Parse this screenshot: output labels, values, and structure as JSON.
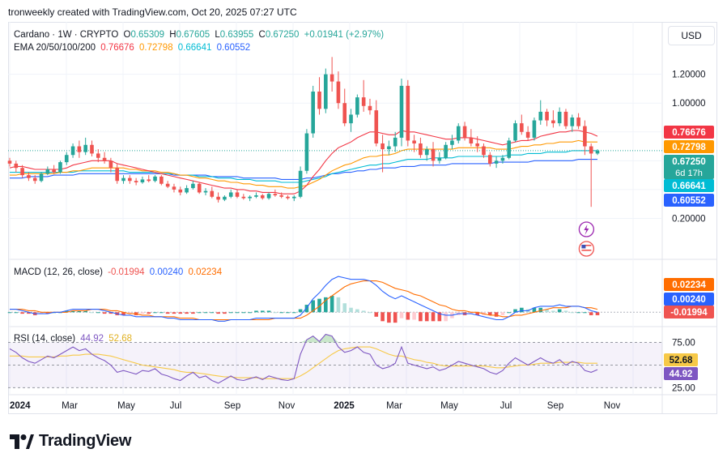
{
  "header": {
    "credit": "tronweekly created with TradingView.com, Oct 20, 2025 07:27 UTC"
  },
  "toolbar": {
    "currency_label": "USD"
  },
  "brand": {
    "name": "TradingView"
  },
  "legend": {
    "symbol": "Cardano · 1W · CRYPTO",
    "ohlc": {
      "o_label": "O",
      "o": "0.65309",
      "h_label": "H",
      "h": "0.67605",
      "l_label": "L",
      "l": "0.63955",
      "c_label": "C",
      "c": "0.67250",
      "change": "+0.01941 (+2.97%)"
    },
    "ema_label": "EMA 20/50/100/200",
    "ema_values": [
      "0.76676",
      "0.72798",
      "0.66641",
      "0.60552"
    ],
    "macd_label": "MACD (12, 26, close)",
    "macd_values": [
      "-0.01994",
      "0.00240",
      "0.02234"
    ],
    "rsi_label": "RSI (14, close)",
    "rsi_values": [
      "44.92",
      "52.68"
    ]
  },
  "colors": {
    "up": "#26a69a",
    "down": "#ef5350",
    "ema20": "#f23645",
    "ema50": "#ff9800",
    "ema100": "#00bcd4",
    "ema200": "#2962ff",
    "macd_line": "#2962ff",
    "signal_line": "#ff6d00",
    "rsi_line": "#7e57c2",
    "rsi_ma": "#f7c948"
  },
  "price_axis": {
    "ticks": [
      "1.20000",
      "1.00000",
      "0.20000"
    ],
    "badges": [
      {
        "value": "0.76676",
        "color": "#f23645"
      },
      {
        "value": "0.72798",
        "color": "#ff9800"
      },
      {
        "value": "0.67250",
        "color": "#26a69a",
        "countdown": "6d 17h"
      },
      {
        "value": "0.66641",
        "color": "#00bcd4"
      },
      {
        "value": "0.60552",
        "color": "#2962ff"
      }
    ]
  },
  "macd_axis": {
    "badges": [
      {
        "value": "0.02234",
        "color": "#ff6d00"
      },
      {
        "value": "0.00240",
        "color": "#2962ff"
      },
      {
        "value": "-0.01994",
        "color": "#ef5350"
      }
    ]
  },
  "rsi_axis": {
    "ticks": [
      "75.00",
      "25.00"
    ],
    "badges": [
      {
        "value": "52.68",
        "color": "#f7c948",
        "text_color": "#131722"
      },
      {
        "value": "44.92",
        "color": "#7e57c2"
      }
    ]
  },
  "time_axis": {
    "labels": [
      "2024",
      "Mar",
      "May",
      "Jul",
      "Sep",
      "Nov",
      "2025",
      "Mar",
      "May",
      "Jul",
      "Sep",
      "Nov"
    ]
  },
  "chart_data": {
    "type": "candlestick",
    "interval": "1W",
    "ylim": [
      0.0,
      1.35
    ],
    "candles_ohlc": [
      [
        0.6,
        0.62,
        0.56,
        0.58
      ],
      [
        0.58,
        0.6,
        0.52,
        0.55
      ],
      [
        0.55,
        0.57,
        0.48,
        0.5
      ],
      [
        0.5,
        0.52,
        0.46,
        0.48
      ],
      [
        0.48,
        0.5,
        0.44,
        0.46
      ],
      [
        0.46,
        0.52,
        0.45,
        0.51
      ],
      [
        0.51,
        0.56,
        0.5,
        0.54
      ],
      [
        0.54,
        0.57,
        0.51,
        0.52
      ],
      [
        0.52,
        0.6,
        0.51,
        0.59
      ],
      [
        0.59,
        0.66,
        0.57,
        0.64
      ],
      [
        0.64,
        0.72,
        0.62,
        0.7
      ],
      [
        0.7,
        0.74,
        0.62,
        0.66
      ],
      [
        0.66,
        0.76,
        0.64,
        0.71
      ],
      [
        0.71,
        0.74,
        0.63,
        0.65
      ],
      [
        0.65,
        0.68,
        0.59,
        0.62
      ],
      [
        0.62,
        0.66,
        0.58,
        0.6
      ],
      [
        0.6,
        0.62,
        0.52,
        0.55
      ],
      [
        0.55,
        0.58,
        0.44,
        0.46
      ],
      [
        0.46,
        0.5,
        0.44,
        0.48
      ],
      [
        0.48,
        0.5,
        0.44,
        0.46
      ],
      [
        0.46,
        0.48,
        0.43,
        0.45
      ],
      [
        0.45,
        0.49,
        0.44,
        0.47
      ],
      [
        0.47,
        0.5,
        0.45,
        0.46
      ],
      [
        0.46,
        0.5,
        0.45,
        0.49
      ],
      [
        0.49,
        0.5,
        0.43,
        0.44
      ],
      [
        0.44,
        0.46,
        0.41,
        0.42
      ],
      [
        0.42,
        0.44,
        0.38,
        0.4
      ],
      [
        0.4,
        0.42,
        0.36,
        0.38
      ],
      [
        0.38,
        0.43,
        0.37,
        0.41
      ],
      [
        0.41,
        0.46,
        0.4,
        0.44
      ],
      [
        0.44,
        0.45,
        0.37,
        0.38
      ],
      [
        0.38,
        0.41,
        0.36,
        0.39
      ],
      [
        0.39,
        0.42,
        0.34,
        0.35
      ],
      [
        0.35,
        0.38,
        0.31,
        0.33
      ],
      [
        0.33,
        0.36,
        0.32,
        0.35
      ],
      [
        0.35,
        0.4,
        0.34,
        0.38
      ],
      [
        0.38,
        0.4,
        0.34,
        0.35
      ],
      [
        0.35,
        0.37,
        0.33,
        0.34
      ],
      [
        0.34,
        0.36,
        0.32,
        0.35
      ],
      [
        0.35,
        0.38,
        0.34,
        0.36
      ],
      [
        0.36,
        0.37,
        0.33,
        0.34
      ],
      [
        0.34,
        0.38,
        0.33,
        0.37
      ],
      [
        0.37,
        0.4,
        0.35,
        0.36
      ],
      [
        0.36,
        0.38,
        0.34,
        0.35
      ],
      [
        0.35,
        0.36,
        0.33,
        0.34
      ],
      [
        0.34,
        0.36,
        0.32,
        0.35
      ],
      [
        0.35,
        0.56,
        0.34,
        0.53
      ],
      [
        0.53,
        0.82,
        0.51,
        0.79
      ],
      [
        0.79,
        1.12,
        0.76,
        1.08
      ],
      [
        1.08,
        1.18,
        0.92,
        0.96
      ],
      [
        0.96,
        1.24,
        0.93,
        1.2
      ],
      [
        1.2,
        1.32,
        1.08,
        1.15
      ],
      [
        1.15,
        1.22,
        0.96,
        1.0
      ],
      [
        1.0,
        1.1,
        0.84,
        0.86
      ],
      [
        0.86,
        0.96,
        0.8,
        0.92
      ],
      [
        0.92,
        1.06,
        0.9,
        1.04
      ],
      [
        1.04,
        1.16,
        0.94,
        0.98
      ],
      [
        0.98,
        1.03,
        0.92,
        0.95
      ],
      [
        0.95,
        1.02,
        0.7,
        0.72
      ],
      [
        0.72,
        0.78,
        0.52,
        0.68
      ],
      [
        0.68,
        0.74,
        0.64,
        0.7
      ],
      [
        0.7,
        0.8,
        0.66,
        0.76
      ],
      [
        0.76,
        1.17,
        0.7,
        1.12
      ],
      [
        1.12,
        1.16,
        0.7,
        0.74
      ],
      [
        0.74,
        0.78,
        0.66,
        0.72
      ],
      [
        0.72,
        0.76,
        0.62,
        0.64
      ],
      [
        0.64,
        0.7,
        0.6,
        0.68
      ],
      [
        0.68,
        0.73,
        0.56,
        0.6
      ],
      [
        0.6,
        0.66,
        0.58,
        0.62
      ],
      [
        0.62,
        0.73,
        0.61,
        0.71
      ],
      [
        0.71,
        0.78,
        0.68,
        0.74
      ],
      [
        0.74,
        0.86,
        0.72,
        0.84
      ],
      [
        0.84,
        0.87,
        0.74,
        0.76
      ],
      [
        0.76,
        0.82,
        0.7,
        0.72
      ],
      [
        0.72,
        0.77,
        0.66,
        0.7
      ],
      [
        0.7,
        0.72,
        0.62,
        0.64
      ],
      [
        0.64,
        0.66,
        0.56,
        0.58
      ],
      [
        0.58,
        0.63,
        0.55,
        0.6
      ],
      [
        0.6,
        0.64,
        0.58,
        0.62
      ],
      [
        0.62,
        0.76,
        0.61,
        0.74
      ],
      [
        0.74,
        0.88,
        0.73,
        0.86
      ],
      [
        0.86,
        0.92,
        0.78,
        0.8
      ],
      [
        0.8,
        0.84,
        0.74,
        0.76
      ],
      [
        0.76,
        0.9,
        0.74,
        0.88
      ],
      [
        0.88,
        1.02,
        0.85,
        0.94
      ],
      [
        0.94,
        0.96,
        0.84,
        0.88
      ],
      [
        0.88,
        0.95,
        0.83,
        0.86
      ],
      [
        0.86,
        0.97,
        0.84,
        0.94
      ],
      [
        0.94,
        0.96,
        0.82,
        0.84
      ],
      [
        0.84,
        0.92,
        0.8,
        0.9
      ],
      [
        0.9,
        0.93,
        0.82,
        0.84
      ],
      [
        0.84,
        0.88,
        0.64,
        0.7
      ],
      [
        0.7,
        0.72,
        0.28,
        0.65
      ],
      [
        0.65,
        0.68,
        0.64,
        0.67
      ]
    ],
    "ema20": [
      0.55,
      0.56,
      0.56,
      0.55,
      0.54,
      0.54,
      0.54,
      0.54,
      0.54,
      0.55,
      0.57,
      0.58,
      0.59,
      0.6,
      0.6,
      0.6,
      0.6,
      0.58,
      0.57,
      0.56,
      0.55,
      0.54,
      0.53,
      0.52,
      0.51,
      0.5,
      0.49,
      0.48,
      0.47,
      0.46,
      0.45,
      0.44,
      0.43,
      0.42,
      0.41,
      0.41,
      0.4,
      0.4,
      0.39,
      0.39,
      0.38,
      0.38,
      0.38,
      0.37,
      0.37,
      0.37,
      0.39,
      0.43,
      0.49,
      0.54,
      0.6,
      0.65,
      0.69,
      0.71,
      0.73,
      0.76,
      0.78,
      0.8,
      0.8,
      0.79,
      0.78,
      0.78,
      0.81,
      0.8,
      0.8,
      0.79,
      0.78,
      0.77,
      0.76,
      0.75,
      0.75,
      0.76,
      0.76,
      0.76,
      0.75,
      0.74,
      0.73,
      0.72,
      0.71,
      0.72,
      0.73,
      0.74,
      0.74,
      0.75,
      0.77,
      0.78,
      0.79,
      0.8,
      0.8,
      0.81,
      0.81,
      0.8,
      0.79,
      0.77
    ],
    "ema50": [
      0.5,
      0.5,
      0.51,
      0.51,
      0.51,
      0.51,
      0.51,
      0.51,
      0.52,
      0.52,
      0.53,
      0.53,
      0.54,
      0.55,
      0.55,
      0.55,
      0.55,
      0.55,
      0.55,
      0.54,
      0.54,
      0.53,
      0.53,
      0.53,
      0.52,
      0.52,
      0.51,
      0.5,
      0.5,
      0.49,
      0.48,
      0.48,
      0.47,
      0.46,
      0.46,
      0.45,
      0.45,
      0.44,
      0.44,
      0.43,
      0.43,
      0.42,
      0.42,
      0.42,
      0.41,
      0.41,
      0.42,
      0.43,
      0.45,
      0.47,
      0.5,
      0.53,
      0.55,
      0.57,
      0.58,
      0.6,
      0.62,
      0.63,
      0.63,
      0.64,
      0.64,
      0.65,
      0.67,
      0.68,
      0.68,
      0.68,
      0.68,
      0.68,
      0.68,
      0.68,
      0.68,
      0.69,
      0.69,
      0.69,
      0.69,
      0.69,
      0.69,
      0.68,
      0.68,
      0.68,
      0.69,
      0.7,
      0.7,
      0.71,
      0.71,
      0.72,
      0.72,
      0.73,
      0.73,
      0.73,
      0.74,
      0.73,
      0.73,
      0.73
    ],
    "ema100": [
      0.52,
      0.52,
      0.52,
      0.52,
      0.52,
      0.52,
      0.52,
      0.52,
      0.52,
      0.52,
      0.52,
      0.53,
      0.53,
      0.53,
      0.53,
      0.53,
      0.53,
      0.53,
      0.53,
      0.52,
      0.52,
      0.52,
      0.52,
      0.52,
      0.51,
      0.51,
      0.51,
      0.5,
      0.5,
      0.5,
      0.49,
      0.49,
      0.49,
      0.48,
      0.48,
      0.48,
      0.47,
      0.47,
      0.47,
      0.46,
      0.46,
      0.46,
      0.46,
      0.45,
      0.45,
      0.45,
      0.45,
      0.46,
      0.47,
      0.48,
      0.49,
      0.51,
      0.52,
      0.53,
      0.54,
      0.55,
      0.56,
      0.57,
      0.57,
      0.58,
      0.58,
      0.59,
      0.6,
      0.61,
      0.61,
      0.61,
      0.61,
      0.62,
      0.62,
      0.62,
      0.62,
      0.63,
      0.63,
      0.63,
      0.63,
      0.63,
      0.63,
      0.63,
      0.63,
      0.64,
      0.64,
      0.64,
      0.65,
      0.65,
      0.65,
      0.66,
      0.66,
      0.66,
      0.66,
      0.67,
      0.67,
      0.67,
      0.67,
      0.67
    ],
    "ema200": [
      0.48,
      0.48,
      0.48,
      0.49,
      0.49,
      0.49,
      0.49,
      0.5,
      0.5,
      0.5,
      0.5,
      0.51,
      0.51,
      0.51,
      0.51,
      0.51,
      0.51,
      0.51,
      0.51,
      0.51,
      0.51,
      0.51,
      0.51,
      0.51,
      0.51,
      0.51,
      0.5,
      0.5,
      0.5,
      0.5,
      0.5,
      0.5,
      0.49,
      0.49,
      0.49,
      0.49,
      0.49,
      0.48,
      0.48,
      0.48,
      0.48,
      0.48,
      0.48,
      0.47,
      0.47,
      0.47,
      0.47,
      0.48,
      0.48,
      0.49,
      0.5,
      0.51,
      0.51,
      0.52,
      0.52,
      0.53,
      0.53,
      0.54,
      0.54,
      0.55,
      0.55,
      0.55,
      0.56,
      0.56,
      0.56,
      0.57,
      0.57,
      0.57,
      0.57,
      0.57,
      0.58,
      0.58,
      0.58,
      0.58,
      0.58,
      0.58,
      0.58,
      0.59,
      0.59,
      0.59,
      0.59,
      0.59,
      0.59,
      0.6,
      0.6,
      0.6,
      0.6,
      0.6,
      0.6,
      0.6,
      0.61,
      0.61,
      0.61,
      0.61
    ],
    "macd_line": [
      0.02,
      0.02,
      0.01,
      0.0,
      -0.01,
      -0.01,
      -0.01,
      0.0,
      0.0,
      0.01,
      0.02,
      0.02,
      0.02,
      0.02,
      0.02,
      0.01,
      0.0,
      -0.01,
      -0.02,
      -0.02,
      -0.03,
      -0.03,
      -0.03,
      -0.03,
      -0.03,
      -0.04,
      -0.04,
      -0.05,
      -0.05,
      -0.05,
      -0.05,
      -0.05,
      -0.05,
      -0.06,
      -0.06,
      -0.05,
      -0.05,
      -0.05,
      -0.05,
      -0.04,
      -0.04,
      -0.04,
      -0.04,
      -0.04,
      -0.04,
      -0.04,
      -0.02,
      0.03,
      0.09,
      0.13,
      0.18,
      0.22,
      0.24,
      0.23,
      0.22,
      0.22,
      0.22,
      0.21,
      0.18,
      0.14,
      0.11,
      0.09,
      0.11,
      0.09,
      0.07,
      0.05,
      0.03,
      0.01,
      -0.01,
      -0.02,
      -0.02,
      -0.01,
      -0.01,
      -0.01,
      -0.02,
      -0.03,
      -0.04,
      -0.05,
      -0.05,
      -0.03,
      0.0,
      0.01,
      0.01,
      0.03,
      0.04,
      0.04,
      0.04,
      0.05,
      0.04,
      0.04,
      0.04,
      0.03,
      0.01,
      0.0
    ],
    "signal_line": [
      0.02,
      0.02,
      0.02,
      0.01,
      0.01,
      0.0,
      0.0,
      0.0,
      0.0,
      0.0,
      0.01,
      0.01,
      0.01,
      0.02,
      0.02,
      0.02,
      0.01,
      0.01,
      0.0,
      -0.01,
      -0.01,
      -0.02,
      -0.02,
      -0.03,
      -0.03,
      -0.03,
      -0.03,
      -0.04,
      -0.04,
      -0.04,
      -0.05,
      -0.05,
      -0.05,
      -0.05,
      -0.05,
      -0.05,
      -0.05,
      -0.05,
      -0.05,
      -0.05,
      -0.05,
      -0.05,
      -0.04,
      -0.04,
      -0.04,
      -0.04,
      -0.04,
      -0.02,
      0.01,
      0.04,
      0.08,
      0.11,
      0.14,
      0.17,
      0.19,
      0.2,
      0.21,
      0.21,
      0.21,
      0.2,
      0.18,
      0.16,
      0.15,
      0.14,
      0.12,
      0.11,
      0.09,
      0.07,
      0.05,
      0.04,
      0.02,
      0.01,
      0.01,
      0.0,
      0.0,
      -0.01,
      -0.02,
      -0.02,
      -0.03,
      -0.03,
      -0.02,
      -0.02,
      -0.01,
      0.0,
      0.01,
      0.02,
      0.03,
      0.03,
      0.03,
      0.04,
      0.04,
      0.03,
      0.03,
      0.02
    ],
    "macd_ylim": [
      -0.08,
      0.3
    ],
    "rsi": [
      68,
      64,
      58,
      54,
      52,
      56,
      60,
      58,
      62,
      66,
      70,
      66,
      68,
      62,
      58,
      55,
      50,
      42,
      44,
      42,
      40,
      44,
      43,
      46,
      40,
      38,
      35,
      33,
      38,
      42,
      36,
      38,
      33,
      30,
      34,
      38,
      34,
      33,
      35,
      37,
      34,
      38,
      36,
      34,
      33,
      35,
      62,
      78,
      82,
      76,
      84,
      82,
      70,
      64,
      66,
      70,
      64,
      62,
      50,
      46,
      48,
      52,
      70,
      52,
      50,
      48,
      46,
      48,
      44,
      46,
      50,
      54,
      52,
      50,
      48,
      46,
      42,
      40,
      44,
      52,
      58,
      54,
      50,
      54,
      58,
      54,
      52,
      56,
      50,
      54,
      52,
      44,
      42,
      45
    ],
    "rsi_ma": [
      60,
      60,
      60,
      59,
      59,
      59,
      59,
      59,
      60,
      60,
      61,
      61,
      62,
      62,
      62,
      61,
      60,
      58,
      56,
      54,
      52,
      50,
      49,
      48,
      47,
      46,
      45,
      43,
      42,
      42,
      41,
      40,
      39,
      38,
      37,
      37,
      36,
      36,
      36,
      36,
      35,
      35,
      35,
      35,
      35,
      35,
      38,
      42,
      47,
      52,
      57,
      62,
      66,
      68,
      69,
      70,
      70,
      70,
      68,
      65,
      62,
      60,
      60,
      58,
      56,
      55,
      53,
      52,
      50,
      49,
      49,
      49,
      49,
      49,
      49,
      49,
      48,
      47,
      47,
      48,
      49,
      50,
      50,
      51,
      52,
      52,
      52,
      53,
      53,
      53,
      53,
      52,
      52,
      52
    ],
    "rsi_levels": [
      75,
      50,
      25
    ]
  }
}
